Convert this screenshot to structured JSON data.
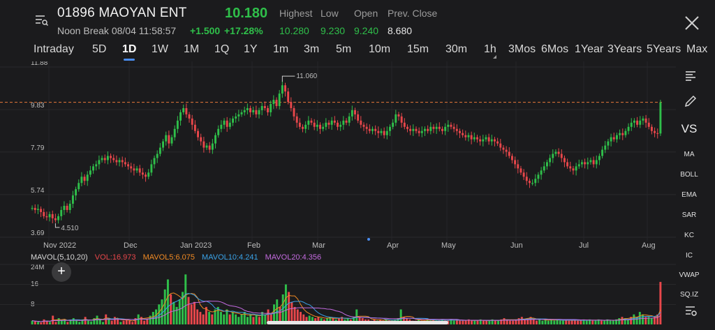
{
  "header": {
    "ticker": "01896 MAOYAN ENT",
    "status": "Noon Break 08/04 11:58:57",
    "last_price": "10.180",
    "change_abs": "+1.500",
    "change_pct": "+17.28%",
    "stats": [
      {
        "label": "Highest",
        "value": "10.280",
        "color": "#2fbf4a"
      },
      {
        "label": "Low",
        "value": "9.230",
        "color": "#2fbf4a"
      },
      {
        "label": "Open",
        "value": "9.240",
        "color": "#2fbf4a"
      },
      {
        "label": "Prev. Close",
        "value": "8.680",
        "color": "#e6e6e6"
      }
    ],
    "menu_icon": "list-search-icon",
    "close_icon": "close-icon"
  },
  "tabs": [
    {
      "label": "Intraday"
    },
    {
      "label": "5D"
    },
    {
      "label": "1D",
      "active": true
    },
    {
      "label": "1W"
    },
    {
      "label": "1M"
    },
    {
      "label": "1Q"
    },
    {
      "label": "1Y"
    },
    {
      "label": "1m"
    },
    {
      "label": "3m"
    },
    {
      "label": "5m"
    },
    {
      "label": "10m"
    },
    {
      "label": "15m"
    },
    {
      "label": "30m"
    },
    {
      "label": "1h"
    },
    {
      "label": "3Mos"
    },
    {
      "label": "6Mos"
    },
    {
      "label": "1Year"
    },
    {
      "label": "3Years"
    },
    {
      "label": "5Years"
    },
    {
      "label": "Max"
    }
  ],
  "colors": {
    "up": "#2fbf4a",
    "down": "#e8474b",
    "prev_close_line": "#e8793a",
    "mavol5": "#f08a24",
    "mavol10": "#3aa3e8",
    "mavol20": "#c46be0"
  },
  "chart_data": [
    {
      "type": "candlestick",
      "y_ticks": [
        "11.88",
        "9.83",
        "7.79",
        "5.74",
        "3.69"
      ],
      "ylim": [
        3.69,
        11.88
      ],
      "x_ticks": [
        "Nov 2022",
        "Dec",
        "Jan 2023",
        "Feb",
        "Mar",
        "Apr",
        "May",
        "Jun",
        "Jul",
        "Aug"
      ],
      "annotations": [
        {
          "text": "11.060"
        },
        {
          "text": "4.510"
        }
      ],
      "reference_line": {
        "value": 10.18
      },
      "close_series": [
        5.1,
        5.0,
        5.05,
        4.9,
        4.7,
        4.65,
        4.8,
        4.6,
        4.51,
        4.7,
        5.0,
        5.2,
        5.0,
        5.3,
        5.7,
        6.0,
        6.3,
        6.6,
        6.4,
        6.7,
        6.9,
        7.1,
        7.2,
        7.4,
        7.5,
        7.4,
        7.6,
        7.5,
        7.4,
        7.3,
        7.4,
        7.3,
        7.2,
        7.1,
        7.0,
        6.9,
        7.0,
        6.8,
        6.7,
        6.6,
        6.8,
        7.2,
        7.5,
        7.7,
        8.0,
        8.3,
        8.6,
        8.2,
        8.5,
        8.9,
        9.3,
        9.7,
        9.9,
        9.6,
        9.4,
        9.1,
        8.8,
        8.5,
        8.3,
        8.0,
        8.1,
        7.9,
        8.2,
        8.6,
        8.9,
        9.1,
        9.3,
        9.0,
        9.2,
        9.4,
        9.5,
        9.6,
        9.7,
        9.8,
        9.9,
        9.7,
        9.8,
        9.6,
        9.8,
        10.0,
        9.9,
        9.7,
        10.1,
        10.3,
        10.0,
        10.6,
        11.0,
        10.7,
        10.2,
        9.9,
        9.5,
        9.2,
        9.0,
        8.9,
        9.1,
        9.3,
        9.2,
        9.0,
        9.1,
        8.9,
        9.0,
        9.2,
        9.1,
        9.3,
        9.2,
        9.0,
        9.1,
        9.3,
        9.2,
        9.5,
        9.8,
        9.6,
        9.3,
        9.1,
        9.0,
        8.9,
        8.8,
        8.9,
        8.8,
        8.7,
        8.8,
        8.6,
        8.8,
        9.0,
        9.2,
        9.6,
        9.5,
        9.2,
        9.0,
        8.9,
        8.8,
        8.9,
        8.8,
        8.7,
        8.8,
        8.9,
        8.8,
        9.0,
        8.9,
        9.0,
        8.9,
        8.8,
        9.0,
        9.1,
        9.0,
        8.9,
        8.8,
        8.7,
        8.6,
        8.5,
        8.6,
        8.4,
        8.5,
        8.4,
        8.3,
        8.4,
        8.5,
        8.3,
        8.4,
        8.3,
        8.2,
        8.0,
        7.9,
        7.8,
        7.6,
        7.4,
        7.2,
        7.0,
        6.8,
        6.6,
        6.4,
        6.3,
        6.3,
        6.5,
        6.7,
        6.9,
        7.1,
        7.3,
        7.5,
        7.7,
        7.8,
        7.7,
        7.5,
        7.3,
        7.1,
        7.0,
        6.9,
        7.1,
        7.2,
        7.3,
        7.2,
        7.3,
        7.4,
        7.2,
        7.4,
        7.6,
        7.9,
        8.1,
        8.3,
        8.5,
        8.4,
        8.6,
        8.7,
        8.6,
        8.8,
        9.0,
        9.2,
        9.3,
        9.1,
        9.3,
        9.4,
        9.2,
        9.0,
        8.8,
        8.7,
        8.68,
        10.18
      ]
    },
    {
      "type": "bar",
      "title": "MAVOL(5,10,20)",
      "legend": [
        {
          "label": "VOL:16.973",
          "color": "#e8474b"
        },
        {
          "label": "MAVOL5:6.075",
          "color": "#f08a24"
        },
        {
          "label": "MAVOL10:4.241",
          "color": "#3aa3e8"
        },
        {
          "label": "MAVOL20:4.356",
          "color": "#c46be0"
        }
      ],
      "y_ticks": [
        "24M",
        "16",
        "8"
      ],
      "ylim": [
        0,
        24
      ],
      "values": [
        1.5,
        1.2,
        1.0,
        0.8,
        2.0,
        1.5,
        1.0,
        3.5,
        1.0,
        2.5,
        1.5,
        2.0,
        1.0,
        1.8,
        2.5,
        1.5,
        1.0,
        2.0,
        3.0,
        1.5,
        1.2,
        2.5,
        3.5,
        2.0,
        1.0,
        4.0,
        2.0,
        1.5,
        3.0,
        2.0,
        1.0,
        1.5,
        2.0,
        1.5,
        1.0,
        2.5,
        4.0,
        3.0,
        1.5,
        2.0,
        3.5,
        5.0,
        6.0,
        8.0,
        10.0,
        14.0,
        18.0,
        12.0,
        9.0,
        7.0,
        10.0,
        13.0,
        20.0,
        11.0,
        8.0,
        9.0,
        6.0,
        5.0,
        4.0,
        7.0,
        5.0,
        4.0,
        6.0,
        7.0,
        5.0,
        4.0,
        6.0,
        4.0,
        5.0,
        4.0,
        3.0,
        4.0,
        5.0,
        3.0,
        4.0,
        3.0,
        4.0,
        3.0,
        5.0,
        4.0,
        6.0,
        4.0,
        8.0,
        10.0,
        7.0,
        12.0,
        16.0,
        13.0,
        9.0,
        7.0,
        6.0,
        5.0,
        4.0,
        3.0,
        3.5,
        3.0,
        2.5,
        3.0,
        2.5,
        2.0,
        2.5,
        3.0,
        2.5,
        2.0,
        2.5,
        3.0,
        2.0,
        2.5,
        2.0,
        3.0,
        6.0,
        3.0,
        2.5,
        2.0,
        2.0,
        1.5,
        2.0,
        1.5,
        2.0,
        1.5,
        2.0,
        1.5,
        1.5,
        2.0,
        2.5,
        6.0,
        3.0,
        2.5,
        2.0,
        1.5,
        1.5,
        2.0,
        1.5,
        1.5,
        2.0,
        1.5,
        2.0,
        1.5,
        1.5,
        2.0,
        1.5,
        1.5,
        2.0,
        1.5,
        2.0,
        1.5,
        1.5,
        1.5,
        2.0,
        1.5,
        1.5,
        1.5,
        2.0,
        1.5,
        1.5,
        1.5,
        2.0,
        1.5,
        1.5,
        2.0,
        2.5,
        2.0,
        1.5,
        1.5,
        2.0,
        2.5,
        3.0,
        2.0,
        2.5,
        3.0,
        2.0,
        1.5,
        2.0,
        1.5,
        2.0,
        1.5,
        2.0,
        1.5,
        2.0,
        1.5,
        1.5,
        2.0,
        1.5,
        1.5,
        2.0,
        1.5,
        1.5,
        2.0,
        1.5,
        2.0,
        1.5,
        1.5,
        2.0,
        1.5,
        1.5,
        2.0,
        1.5,
        1.5,
        2.0,
        2.5,
        3.0,
        2.5,
        2.0,
        3.0,
        4.0,
        3.0,
        5.0,
        4.0,
        3.0,
        3.0,
        2.5,
        3.0,
        4.0,
        17.0
      ]
    }
  ],
  "toolbar": {
    "items": [
      {
        "icon": "align-left-icon"
      },
      {
        "icon": "pencil-icon"
      },
      {
        "label": "VS"
      },
      {
        "label": "MA"
      },
      {
        "label": "BOLL"
      },
      {
        "label": "EMA"
      },
      {
        "label": "SAR"
      },
      {
        "label": "KC"
      },
      {
        "label": "IC"
      },
      {
        "label": "VWAP"
      },
      {
        "label": "SQ.IZ"
      },
      {
        "icon": "settings-list-icon"
      }
    ]
  },
  "add_indicator_label": "+"
}
